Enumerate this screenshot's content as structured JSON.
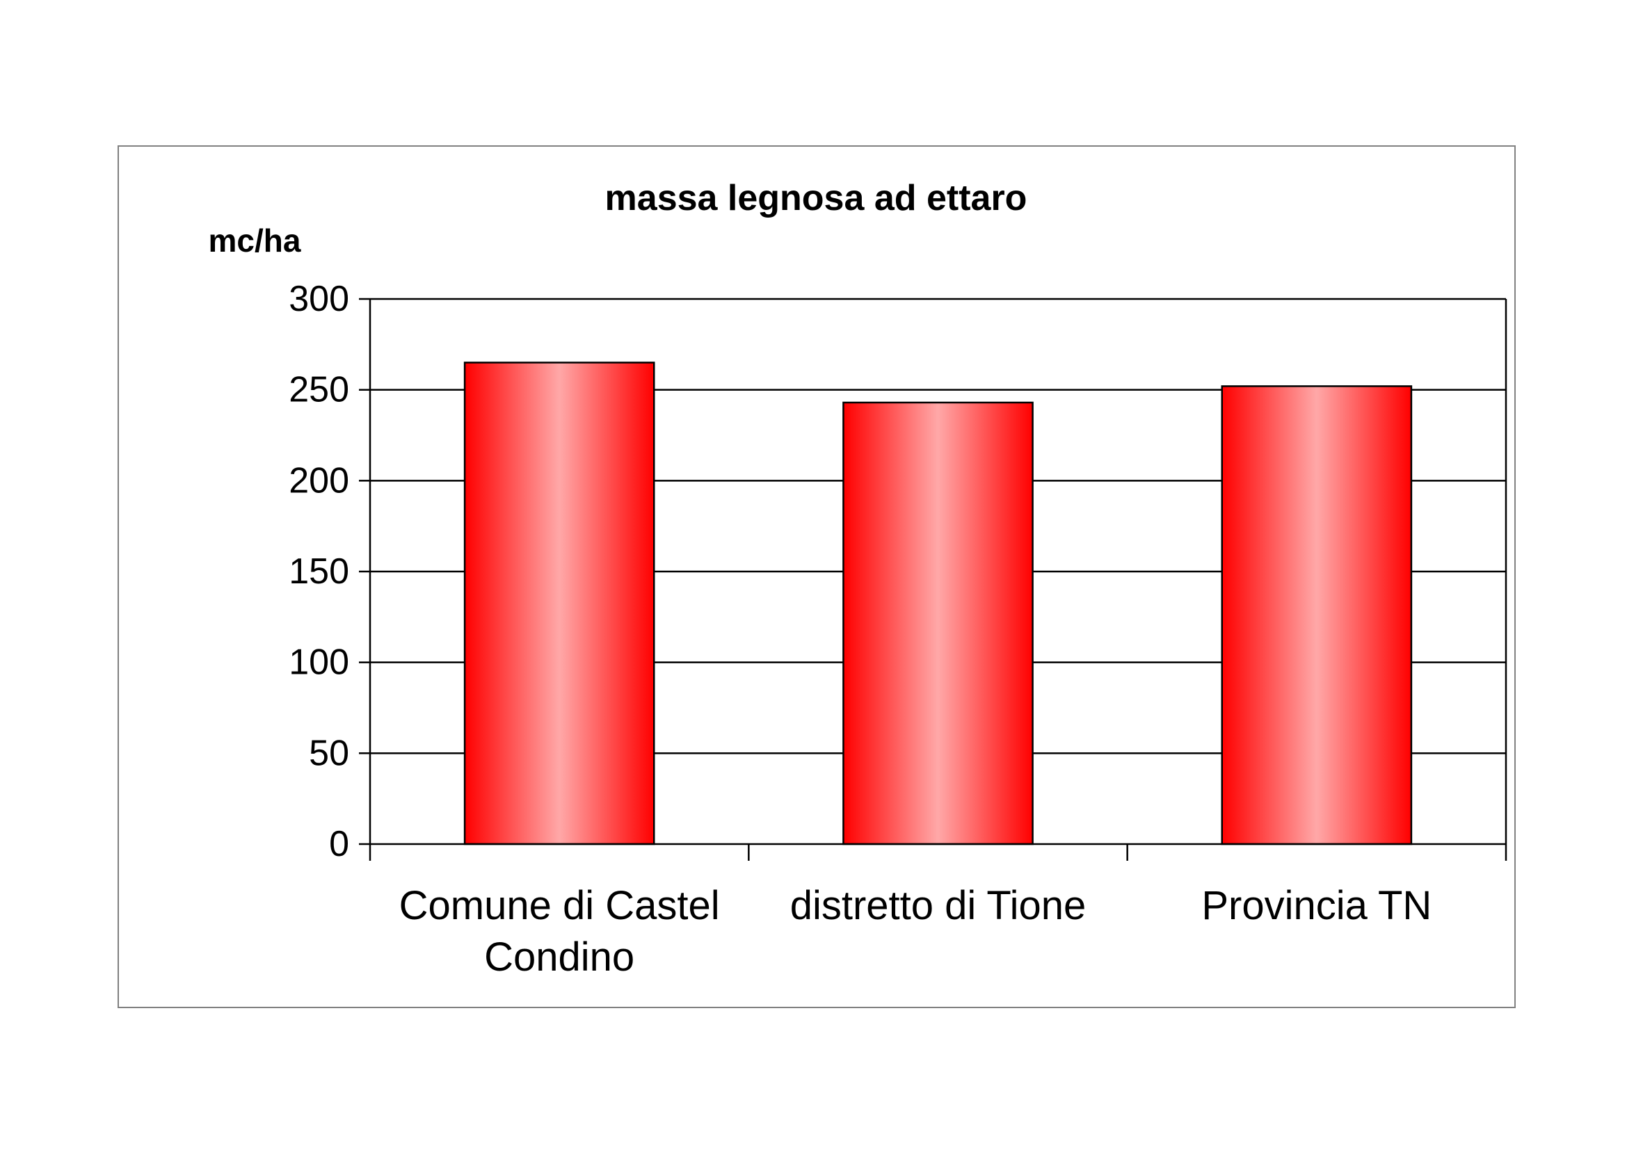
{
  "chart_data": {
    "type": "bar",
    "title": "massa legnosa ad ettaro",
    "ylabel": "mc/ha",
    "xlabel": "",
    "categories": [
      [
        "Comune di Castel",
        "Condino"
      ],
      [
        "distretto di Tione"
      ],
      [
        "Provincia TN"
      ]
    ],
    "values": [
      265,
      243,
      252
    ],
    "ylim": [
      0,
      300
    ],
    "yticks": [
      0,
      50,
      100,
      150,
      200,
      250,
      300
    ],
    "grid": true,
    "legend": "none",
    "colors": {
      "bar_edge": "#ff0000",
      "bar_center": "#ffa8a8",
      "bar_outline": "#000000",
      "grid": "#000000",
      "frame": "#808080"
    }
  }
}
